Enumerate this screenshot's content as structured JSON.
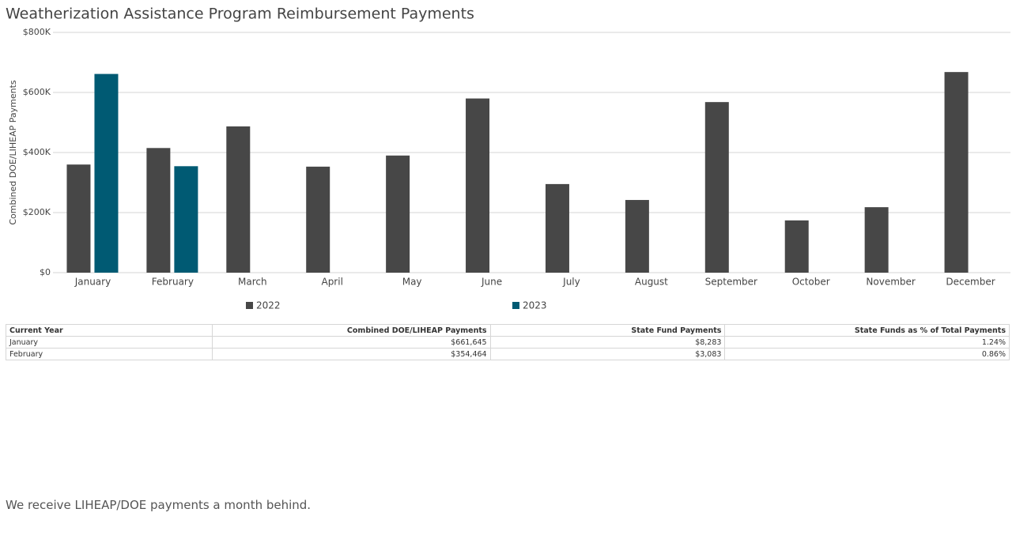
{
  "chart_data": {
    "type": "bar",
    "title": "Weatherization Assistance Program Reimbursement Payments",
    "y_label": "Combined DOE/LIHEAP Payments",
    "categories": [
      "January",
      "February",
      "March",
      "April",
      "May",
      "June",
      "July",
      "August",
      "September",
      "October",
      "November",
      "December"
    ],
    "series": [
      {
        "name": "2022",
        "color": "#474747",
        "values": [
          360000,
          415000,
          487000,
          353000,
          390000,
          580000,
          295000,
          242000,
          568000,
          174000,
          218000,
          668000
        ]
      },
      {
        "name": "2023",
        "color": "#005a73",
        "values": [
          661645,
          354464,
          null,
          null,
          null,
          null,
          null,
          null,
          null,
          null,
          null,
          null
        ]
      }
    ],
    "ylim": [
      0,
      800000
    ],
    "yticks": [
      {
        "value": 0,
        "label": "$0"
      },
      {
        "value": 200000,
        "label": "$200K"
      },
      {
        "value": 400000,
        "label": "$400K"
      },
      {
        "value": 600000,
        "label": "$600K"
      },
      {
        "value": 800000,
        "label": "$800K"
      }
    ],
    "grid": true,
    "legend": "bottom"
  },
  "table": {
    "header": [
      "Current Year",
      "Combined DOE/LIHEAP Payments",
      "State Fund Payments",
      "State Funds as % of Total Payments"
    ],
    "rows": [
      [
        "January",
        "$661,645",
        "$8,283",
        "1.24%"
      ],
      [
        "February",
        "$354,464",
        "$3,083",
        "0.86%"
      ]
    ]
  },
  "note": "We receive LIHEAP/DOE payments a month behind."
}
